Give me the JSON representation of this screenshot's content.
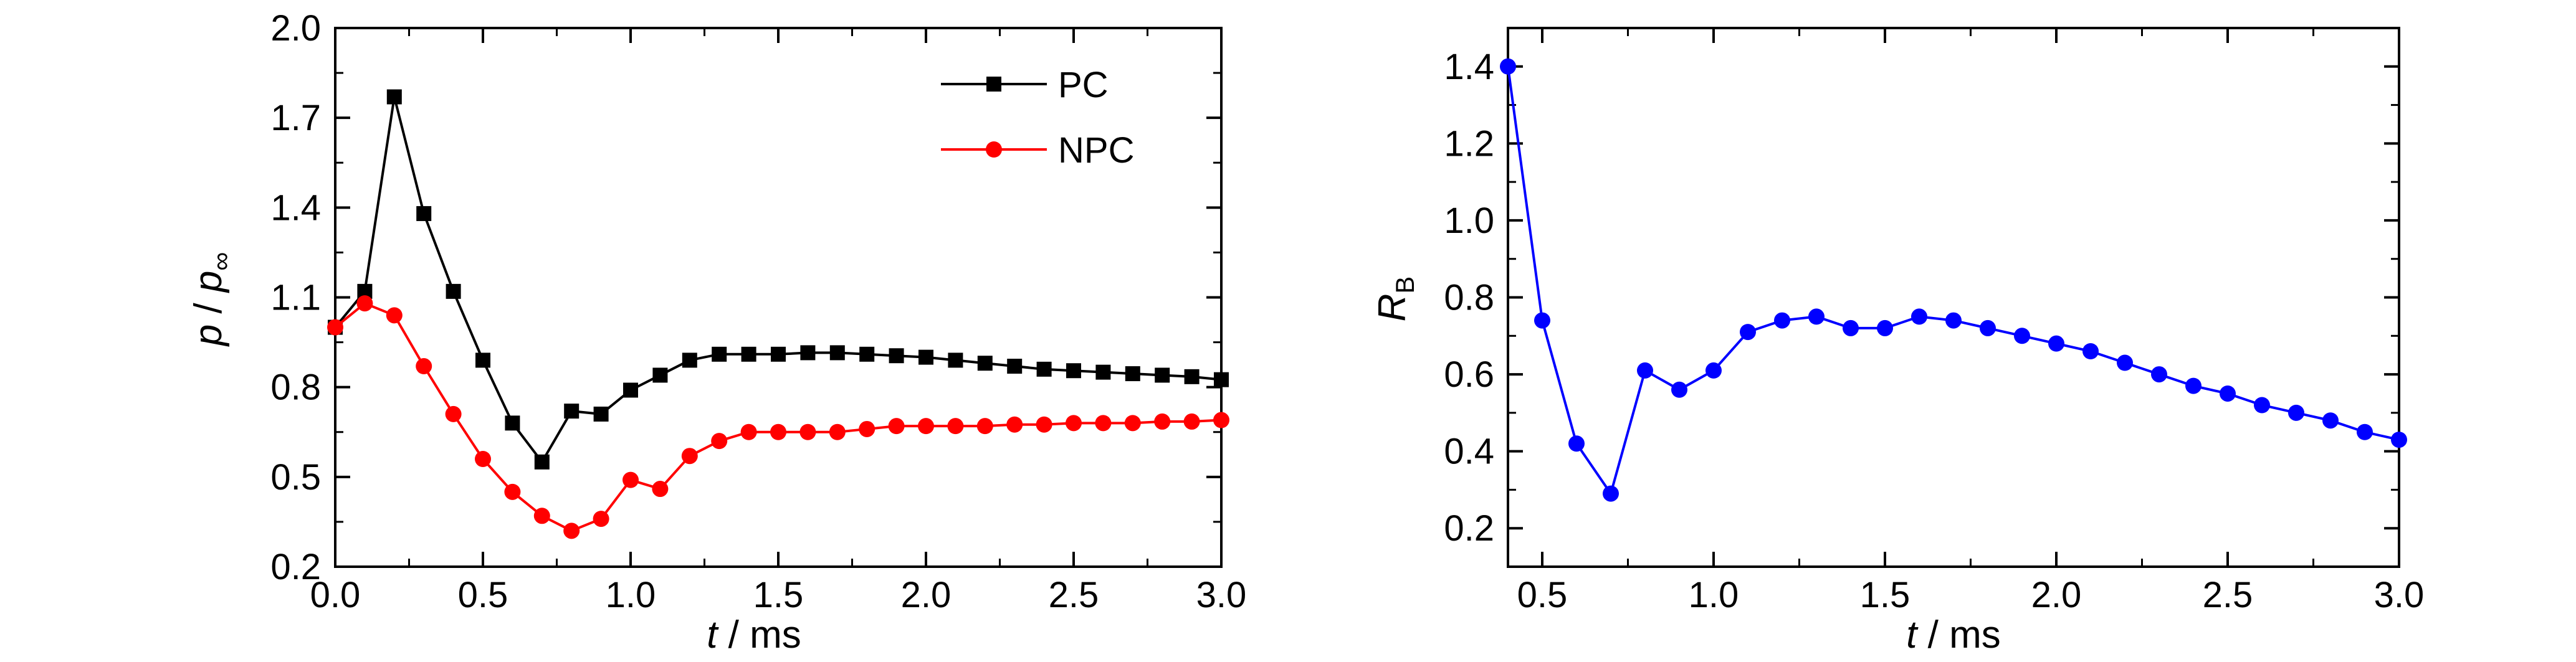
{
  "chart_data": [
    {
      "type": "line",
      "xlabel_var": "t",
      "xlabel_unit": "/ ms",
      "ylabel_var": "p",
      "ylabel_sep": " / ",
      "ylabel_var2": "p",
      "ylabel_sub": "∞",
      "xlim": [
        0,
        3.0
      ],
      "ylim": [
        0.2,
        2.0
      ],
      "xticks": [
        "0.0",
        "0.5",
        "1.0",
        "1.5",
        "2.0",
        "2.5",
        "3.0"
      ],
      "yticks": [
        "0.2",
        "0.5",
        "0.8",
        "1.1",
        "1.4",
        "1.7",
        "2.0"
      ],
      "legend_position": "top-right",
      "series": [
        {
          "name": "PC",
          "color": "#000000",
          "marker": "square",
          "x": [
            0.0,
            0.1,
            0.2,
            0.3,
            0.4,
            0.5,
            0.6,
            0.7,
            0.8,
            0.9,
            1.0,
            1.1,
            1.2,
            1.3,
            1.4,
            1.5,
            1.6,
            1.7,
            1.8,
            1.9,
            2.0,
            2.1,
            2.2,
            2.3,
            2.4,
            2.5,
            2.6,
            2.7,
            2.8,
            2.9,
            3.0
          ],
          "y": [
            1.0,
            1.12,
            1.77,
            1.38,
            1.12,
            0.89,
            0.68,
            0.55,
            0.72,
            0.71,
            0.79,
            0.84,
            0.89,
            0.91,
            0.91,
            0.91,
            0.915,
            0.915,
            0.91,
            0.905,
            0.9,
            0.89,
            0.88,
            0.87,
            0.86,
            0.855,
            0.85,
            0.845,
            0.84,
            0.835,
            0.825
          ]
        },
        {
          "name": "NPC",
          "color": "#ff0000",
          "marker": "circle",
          "x": [
            0.0,
            0.1,
            0.2,
            0.3,
            0.4,
            0.5,
            0.6,
            0.7,
            0.8,
            0.9,
            1.0,
            1.1,
            1.2,
            1.3,
            1.4,
            1.5,
            1.6,
            1.7,
            1.8,
            1.9,
            2.0,
            2.1,
            2.2,
            2.3,
            2.4,
            2.5,
            2.6,
            2.7,
            2.8,
            2.9,
            3.0
          ],
          "y": [
            1.0,
            1.08,
            1.04,
            0.87,
            0.71,
            0.56,
            0.45,
            0.37,
            0.32,
            0.36,
            0.49,
            0.46,
            0.57,
            0.62,
            0.65,
            0.65,
            0.65,
            0.65,
            0.66,
            0.67,
            0.67,
            0.67,
            0.67,
            0.675,
            0.675,
            0.68,
            0.68,
            0.68,
            0.685,
            0.685,
            0.69
          ]
        }
      ]
    },
    {
      "type": "line",
      "xlabel_var": "t",
      "xlabel_unit": "/ ms",
      "ylabel_var": "R",
      "ylabel_sub": "B",
      "xlim": [
        0.4,
        3.0
      ],
      "ylim": [
        0.1,
        1.5
      ],
      "xticks": [
        "0.5",
        "1.0",
        "1.5",
        "2.0",
        "2.5",
        "3.0"
      ],
      "yticks": [
        "0.2",
        "0.4",
        "0.6",
        "0.8",
        "1.0",
        "1.2",
        "1.4"
      ],
      "series": [
        {
          "color": "#0000ff",
          "marker": "circle",
          "x": [
            0.4,
            0.5,
            0.6,
            0.7,
            0.8,
            0.9,
            1.0,
            1.1,
            1.2,
            1.3,
            1.4,
            1.5,
            1.6,
            1.7,
            1.8,
            1.9,
            2.0,
            2.1,
            2.2,
            2.3,
            2.4,
            2.5,
            2.6,
            2.7,
            2.8,
            2.9,
            3.0
          ],
          "y": [
            1.4,
            0.74,
            0.42,
            0.29,
            0.61,
            0.56,
            0.61,
            0.71,
            0.74,
            0.75,
            0.72,
            0.72,
            0.75,
            0.74,
            0.72,
            0.7,
            0.68,
            0.66,
            0.63,
            0.6,
            0.57,
            0.55,
            0.52,
            0.5,
            0.48,
            0.45,
            0.43
          ]
        }
      ]
    }
  ]
}
